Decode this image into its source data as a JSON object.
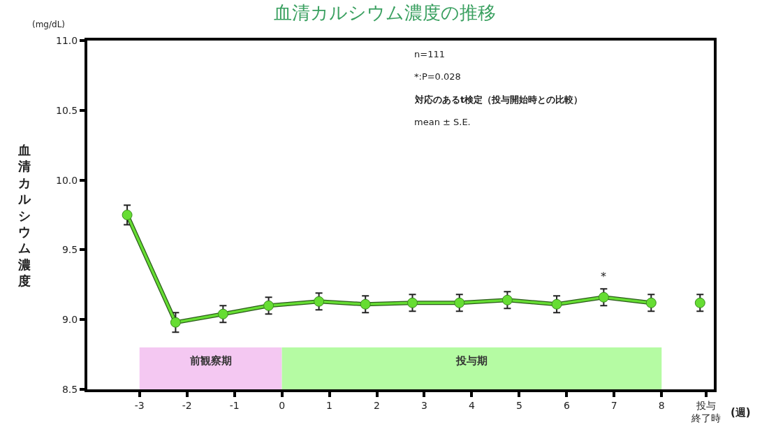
{
  "chart_data": {
    "type": "line",
    "title": "血清カルシウム濃度の推移",
    "ylabel": "血清カルシウム濃度",
    "xlabel": "(週)",
    "annotations": [
      "(mg/dL)",
      "n=111",
      "*:P=0.028",
      "対応のあるt検定（投与開始時との比較）",
      "mean ± S.E.",
      {
        "text": "*",
        "x": 6.78,
        "y": 9.16
      }
    ],
    "series": [
      {
        "color": "#66dd33",
        "x": [
          -3.26,
          -2.24,
          -1.24,
          -0.28,
          0.78,
          1.76,
          2.75,
          3.74,
          4.75,
          5.79,
          6.78,
          7.78
        ],
        "values": [
          9.75,
          8.98,
          9.04,
          9.1,
          9.13,
          9.11,
          9.12,
          9.12,
          9.14,
          9.11,
          9.16,
          9.12
        ],
        "errors": [
          0.07,
          0.07,
          0.06,
          0.06,
          0.06,
          0.06,
          0.06,
          0.06,
          0.06,
          0.06,
          0.06,
          0.06
        ]
      },
      {
        "type": "scatter",
        "color": "#66dd33",
        "x": [
          8.81
        ],
        "values": [
          9.12
        ],
        "errors": [
          0.06
        ]
      }
    ],
    "bands": [
      {
        "axis": "x",
        "from": -3,
        "to": 0,
        "label": "前観察期",
        "color": "#f4c8f2"
      },
      {
        "axis": "x",
        "from": 0,
        "to": 8,
        "label": "投与期",
        "color": "#b5fba3"
      }
    ],
    "xlim": [
      -4.1,
      9.1
    ],
    "xticks": [
      -3,
      -2,
      -1,
      0,
      1,
      2,
      3,
      4,
      5,
      6,
      7,
      8,
      {
        "value": 8.94,
        "label": "投与終了時"
      }
    ],
    "ylim": [
      8.5,
      11.0
    ],
    "yticks": [
      {
        "value": 8.5,
        "label": "8.5"
      },
      {
        "value": 9.0,
        "label": "9.0"
      },
      {
        "value": 9.5,
        "label": "9.5"
      },
      {
        "value": 10.0,
        "label": "10.0"
      },
      {
        "value": 10.5,
        "label": "10.5"
      },
      {
        "value": 11.0,
        "label": "11.0"
      }
    ],
    "grid": false,
    "marker": "circle",
    "line_style": "solid"
  }
}
